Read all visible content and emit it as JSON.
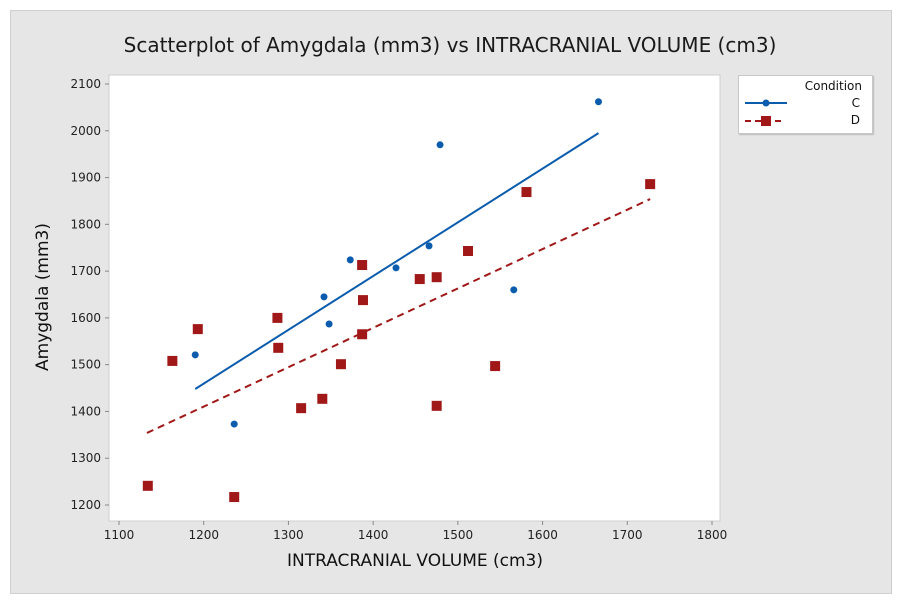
{
  "chart_data": {
    "type": "scatter",
    "title": "Scatterplot of Amygdala (mm3) vs INTRACRANIAL VOLUME (cm3)",
    "xlabel": "INTRACRANIAL VOLUME (cm3)",
    "ylabel": "Amygdala (mm3)",
    "xlim": [
      1100,
      1800
    ],
    "ylim": [
      1200,
      2100
    ],
    "xticks": [
      1100,
      1200,
      1300,
      1400,
      1500,
      1600,
      1700,
      1800
    ],
    "yticks": [
      1200,
      1300,
      1400,
      1500,
      1600,
      1700,
      1800,
      1900,
      2000,
      2100
    ],
    "grid": false,
    "legend": {
      "title": "Condition",
      "placement": "top-right outside"
    },
    "series": [
      {
        "name": "C",
        "color": "#0b5cad",
        "marker": "circle",
        "line": "solid",
        "points": [
          [
            1190,
            1521
          ],
          [
            1236,
            1373
          ],
          [
            1342,
            1645
          ],
          [
            1348,
            1587
          ],
          [
            1373,
            1724
          ],
          [
            1427,
            1707
          ],
          [
            1466,
            1754
          ],
          [
            1479,
            1970
          ],
          [
            1566,
            1660
          ],
          [
            1666,
            2062
          ]
        ],
        "fit": [
          [
            1190,
            1448
          ],
          [
            1666,
            1995
          ]
        ]
      },
      {
        "name": "D",
        "color": "#a01818",
        "marker": "square",
        "line": "dashed",
        "points": [
          [
            1134,
            1241
          ],
          [
            1163,
            1508
          ],
          [
            1193,
            1576
          ],
          [
            1287,
            1600
          ],
          [
            1288,
            1536
          ],
          [
            1236,
            1217
          ],
          [
            1315,
            1407
          ],
          [
            1340,
            1427
          ],
          [
            1362,
            1501
          ],
          [
            1387,
            1713
          ],
          [
            1388,
            1638
          ],
          [
            1387,
            1565
          ],
          [
            1455,
            1683
          ],
          [
            1475,
            1687
          ],
          [
            1475,
            1412
          ],
          [
            1512,
            1743
          ],
          [
            1544,
            1497
          ],
          [
            1581,
            1869
          ],
          [
            1727,
            1886
          ]
        ],
        "fit": [
          [
            1133,
            1354
          ],
          [
            1727,
            1854
          ]
        ]
      }
    ]
  }
}
